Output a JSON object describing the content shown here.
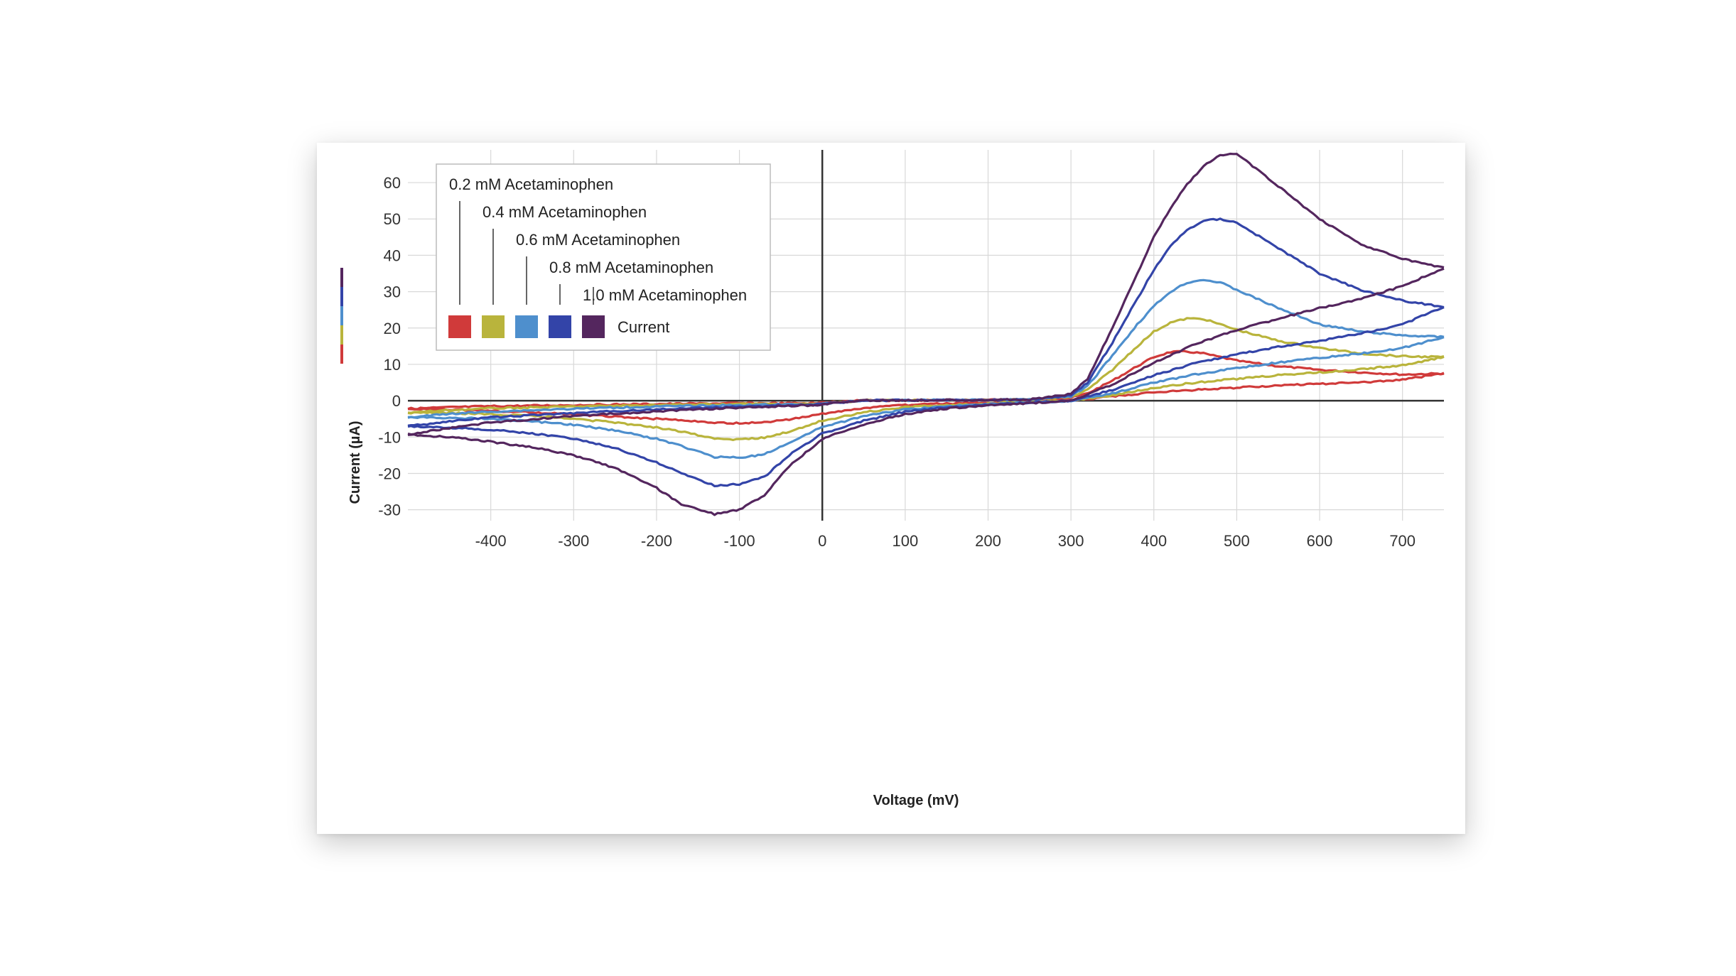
{
  "chart_data": {
    "type": "line",
    "title": "",
    "xlabel": "Voltage (mV)",
    "ylabel": "Current (µA)",
    "xlim": [
      -500,
      750
    ],
    "ylim": [
      -33,
      69
    ],
    "x_ticks": [
      -400,
      -300,
      -200,
      -100,
      0,
      100,
      200,
      300,
      400,
      500,
      600,
      700
    ],
    "y_ticks": [
      -30,
      -20,
      -10,
      0,
      10,
      20,
      30,
      40,
      50,
      60
    ],
    "grid": true,
    "legend_position": "top-left",
    "legend_title": "Current",
    "series": [
      {
        "name": "0.2 mM Acetaminophen",
        "color": "#d03a3a",
        "forward": [
          [
            -10,
            -0.7
          ],
          [
            50,
            0.1
          ],
          [
            100,
            0.1
          ],
          [
            150,
            0.2
          ],
          [
            200,
            0.2
          ],
          [
            250,
            0.3
          ],
          [
            300,
            0.8
          ],
          [
            320,
            2.0
          ],
          [
            350,
            5.5
          ],
          [
            380,
            9.5
          ],
          [
            400,
            12.0
          ],
          [
            420,
            13.4
          ],
          [
            440,
            13.5
          ],
          [
            460,
            13.0
          ],
          [
            480,
            12.0
          ],
          [
            500,
            11.0
          ],
          [
            550,
            9.5
          ],
          [
            600,
            8.5
          ],
          [
            650,
            7.8
          ],
          [
            700,
            7.2
          ],
          [
            750,
            7.5
          ]
        ],
        "reverse": [
          [
            750,
            7.5
          ],
          [
            700,
            5.8
          ],
          [
            650,
            5.0
          ],
          [
            600,
            4.6
          ],
          [
            550,
            4.2
          ],
          [
            500,
            3.6
          ],
          [
            450,
            3.0
          ],
          [
            400,
            2.3
          ],
          [
            350,
            1.2
          ],
          [
            300,
            0.0
          ],
          [
            250,
            -0.3
          ],
          [
            200,
            -0.5
          ],
          [
            150,
            -0.8
          ],
          [
            100,
            -1.2
          ],
          [
            50,
            -2.0
          ],
          [
            0,
            -3.6
          ],
          [
            -40,
            -5.2
          ],
          [
            -70,
            -6.0
          ],
          [
            -100,
            -6.2
          ],
          [
            -130,
            -6.0
          ],
          [
            -170,
            -5.4
          ],
          [
            -200,
            -5.0
          ],
          [
            -250,
            -4.4
          ],
          [
            -300,
            -3.8
          ],
          [
            -350,
            -3.2
          ],
          [
            -400,
            -2.8
          ],
          [
            -450,
            -2.4
          ],
          [
            -500,
            -2.2
          ]
        ],
        "return": [
          [
            -500,
            -2.2
          ],
          [
            -450,
            -1.8
          ],
          [
            -400,
            -1.5
          ],
          [
            -300,
            -1.2
          ],
          [
            -200,
            -0.9
          ],
          [
            -100,
            -0.7
          ],
          [
            -10,
            -0.7
          ]
        ]
      },
      {
        "name": "0.4 mM Acetaminophen",
        "color": "#b9b43c",
        "forward": [
          [
            -10,
            -0.9
          ],
          [
            50,
            0.1
          ],
          [
            100,
            0.1
          ],
          [
            150,
            0.2
          ],
          [
            200,
            0.2
          ],
          [
            250,
            0.3
          ],
          [
            300,
            1.0
          ],
          [
            320,
            3.0
          ],
          [
            350,
            8.5
          ],
          [
            380,
            15.0
          ],
          [
            400,
            19.0
          ],
          [
            420,
            21.5
          ],
          [
            440,
            22.6
          ],
          [
            460,
            22.5
          ],
          [
            480,
            21.0
          ],
          [
            500,
            19.5
          ],
          [
            550,
            16.5
          ],
          [
            600,
            14.5
          ],
          [
            650,
            13.0
          ],
          [
            700,
            12.2
          ],
          [
            750,
            12.0
          ]
        ],
        "reverse": [
          [
            750,
            12.0
          ],
          [
            700,
            9.8
          ],
          [
            650,
            8.6
          ],
          [
            600,
            7.8
          ],
          [
            550,
            7.0
          ],
          [
            500,
            6.0
          ],
          [
            450,
            5.0
          ],
          [
            400,
            3.5
          ],
          [
            350,
            1.5
          ],
          [
            300,
            0.0
          ],
          [
            250,
            -0.4
          ],
          [
            200,
            -0.8
          ],
          [
            150,
            -1.2
          ],
          [
            100,
            -1.8
          ],
          [
            50,
            -3.2
          ],
          [
            0,
            -5.5
          ],
          [
            -40,
            -8.5
          ],
          [
            -70,
            -10.2
          ],
          [
            -100,
            -10.7
          ],
          [
            -130,
            -10.3
          ],
          [
            -170,
            -8.5
          ],
          [
            -200,
            -7.4
          ],
          [
            -250,
            -6.0
          ],
          [
            -300,
            -5.0
          ],
          [
            -350,
            -4.2
          ],
          [
            -400,
            -3.7
          ],
          [
            -450,
            -3.4
          ],
          [
            -500,
            -3.3
          ]
        ],
        "return": [
          [
            -500,
            -3.3
          ],
          [
            -450,
            -2.6
          ],
          [
            -400,
            -2.1
          ],
          [
            -300,
            -1.6
          ],
          [
            -200,
            -1.2
          ],
          [
            -100,
            -0.9
          ],
          [
            -10,
            -0.9
          ]
        ]
      },
      {
        "name": "0.6 mM Acetaminophen",
        "color": "#4e8fcd",
        "forward": [
          [
            -10,
            -1.0
          ],
          [
            50,
            0.1
          ],
          [
            100,
            0.1
          ],
          [
            150,
            0.2
          ],
          [
            200,
            0.2
          ],
          [
            250,
            0.3
          ],
          [
            300,
            1.2
          ],
          [
            320,
            4.0
          ],
          [
            350,
            12.5
          ],
          [
            380,
            21.0
          ],
          [
            400,
            26.0
          ],
          [
            420,
            30.0
          ],
          [
            440,
            32.5
          ],
          [
            460,
            33.3
          ],
          [
            480,
            32.5
          ],
          [
            500,
            30.5
          ],
          [
            550,
            25.5
          ],
          [
            600,
            21.0
          ],
          [
            650,
            19.0
          ],
          [
            700,
            18.0
          ],
          [
            750,
            17.5
          ]
        ],
        "reverse": [
          [
            750,
            17.5
          ],
          [
            700,
            14.5
          ],
          [
            650,
            13.0
          ],
          [
            600,
            11.8
          ],
          [
            550,
            10.5
          ],
          [
            500,
            9.0
          ],
          [
            450,
            7.2
          ],
          [
            400,
            5.0
          ],
          [
            350,
            2.0
          ],
          [
            300,
            0.0
          ],
          [
            250,
            -0.5
          ],
          [
            200,
            -1.0
          ],
          [
            150,
            -1.5
          ],
          [
            100,
            -2.4
          ],
          [
            50,
            -4.3
          ],
          [
            0,
            -7.2
          ],
          [
            -40,
            -11.5
          ],
          [
            -70,
            -14.8
          ],
          [
            -100,
            -15.7
          ],
          [
            -130,
            -15.5
          ],
          [
            -170,
            -12.5
          ],
          [
            -200,
            -10.5
          ],
          [
            -250,
            -8.2
          ],
          [
            -300,
            -6.6
          ],
          [
            -350,
            -5.7
          ],
          [
            -400,
            -5.0
          ],
          [
            -450,
            -4.7
          ],
          [
            -500,
            -4.6
          ]
        ],
        "return": [
          [
            -500,
            -4.6
          ],
          [
            -450,
            -3.6
          ],
          [
            -400,
            -3.0
          ],
          [
            -300,
            -2.2
          ],
          [
            -200,
            -1.6
          ],
          [
            -100,
            -1.2
          ],
          [
            -10,
            -1.0
          ]
        ]
      },
      {
        "name": "0.8 mM Acetaminophen",
        "color": "#3344a8",
        "forward": [
          [
            -10,
            -1.1
          ],
          [
            50,
            0.1
          ],
          [
            100,
            0.1
          ],
          [
            150,
            0.2
          ],
          [
            200,
            0.2
          ],
          [
            250,
            0.3
          ],
          [
            300,
            1.5
          ],
          [
            320,
            5.0
          ],
          [
            350,
            16.0
          ],
          [
            380,
            28.0
          ],
          [
            400,
            36.0
          ],
          [
            420,
            42.5
          ],
          [
            440,
            47.0
          ],
          [
            460,
            49.5
          ],
          [
            480,
            50.0
          ],
          [
            500,
            49.0
          ],
          [
            550,
            42.0
          ],
          [
            600,
            35.0
          ],
          [
            650,
            30.5
          ],
          [
            700,
            27.5
          ],
          [
            750,
            25.8
          ]
        ],
        "reverse": [
          [
            750,
            25.8
          ],
          [
            700,
            21.0
          ],
          [
            650,
            18.5
          ],
          [
            600,
            16.5
          ],
          [
            550,
            14.8
          ],
          [
            500,
            12.8
          ],
          [
            450,
            10.3
          ],
          [
            400,
            7.0
          ],
          [
            350,
            3.0
          ],
          [
            300,
            0.0
          ],
          [
            250,
            -0.6
          ],
          [
            200,
            -1.1
          ],
          [
            150,
            -1.8
          ],
          [
            100,
            -3.0
          ],
          [
            50,
            -5.5
          ],
          [
            0,
            -9.0
          ],
          [
            -40,
            -15.0
          ],
          [
            -70,
            -21.0
          ],
          [
            -100,
            -23.0
          ],
          [
            -130,
            -23.3
          ],
          [
            -170,
            -20.0
          ],
          [
            -200,
            -17.0
          ],
          [
            -250,
            -13.0
          ],
          [
            -300,
            -10.5
          ],
          [
            -350,
            -9.0
          ],
          [
            -400,
            -8.0
          ],
          [
            -450,
            -7.4
          ],
          [
            -500,
            -7.0
          ]
        ],
        "return": [
          [
            -500,
            -7.0
          ],
          [
            -450,
            -5.7
          ],
          [
            -400,
            -4.6
          ],
          [
            -300,
            -3.4
          ],
          [
            -200,
            -2.4
          ],
          [
            -100,
            -1.6
          ],
          [
            -10,
            -1.1
          ]
        ]
      },
      {
        "name": "1.0 mM Acetaminophen",
        "color": "#54265e",
        "forward": [
          [
            -10,
            -1.2
          ],
          [
            50,
            0.1
          ],
          [
            100,
            0.1
          ],
          [
            150,
            0.2
          ],
          [
            200,
            0.2
          ],
          [
            250,
            0.3
          ],
          [
            300,
            1.8
          ],
          [
            320,
            6.0
          ],
          [
            350,
            20.0
          ],
          [
            380,
            35.0
          ],
          [
            400,
            45.0
          ],
          [
            420,
            53.0
          ],
          [
            440,
            59.5
          ],
          [
            460,
            64.5
          ],
          [
            480,
            67.5
          ],
          [
            500,
            68.0
          ],
          [
            550,
            59.0
          ],
          [
            600,
            50.0
          ],
          [
            650,
            43.0
          ],
          [
            700,
            39.0
          ],
          [
            750,
            36.5
          ]
        ],
        "reverse": [
          [
            750,
            36.5
          ],
          [
            700,
            31.5
          ],
          [
            650,
            28.0
          ],
          [
            600,
            25.5
          ],
          [
            550,
            22.5
          ],
          [
            500,
            19.5
          ],
          [
            450,
            15.5
          ],
          [
            400,
            10.5
          ],
          [
            350,
            4.5
          ],
          [
            300,
            0.0
          ],
          [
            250,
            -0.7
          ],
          [
            200,
            -1.3
          ],
          [
            150,
            -2.2
          ],
          [
            100,
            -3.7
          ],
          [
            50,
            -6.5
          ],
          [
            0,
            -10.5
          ],
          [
            -40,
            -18.0
          ],
          [
            -70,
            -26.0
          ],
          [
            -100,
            -30.0
          ],
          [
            -130,
            -31.2
          ],
          [
            -170,
            -28.5
          ],
          [
            -200,
            -24.0
          ],
          [
            -250,
            -18.5
          ],
          [
            -300,
            -15.0
          ],
          [
            -350,
            -12.8
          ],
          [
            -400,
            -11.3
          ],
          [
            -450,
            -10.0
          ],
          [
            -500,
            -9.3
          ]
        ],
        "return": [
          [
            -500,
            -9.3
          ],
          [
            -450,
            -7.5
          ],
          [
            -400,
            -6.0
          ],
          [
            -300,
            -4.2
          ],
          [
            -200,
            -2.9
          ],
          [
            -100,
            -1.9
          ],
          [
            -10,
            -1.2
          ]
        ]
      }
    ]
  }
}
